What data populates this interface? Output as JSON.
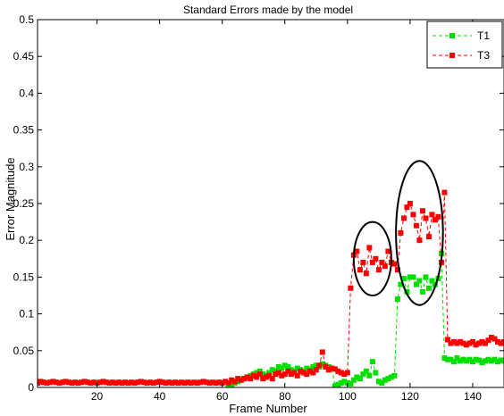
{
  "chart_data": {
    "type": "line",
    "title": "Standard Errors made by the model",
    "xlabel": "Frame Number",
    "ylabel": "Error Magnitude",
    "xlim": [
      1,
      150
    ],
    "ylim": [
      0,
      0.5
    ],
    "xticks": [
      20,
      40,
      60,
      80,
      100,
      120,
      140
    ],
    "yticks": [
      0,
      0.05,
      0.1,
      0.15,
      0.2,
      0.25,
      0.3,
      0.35,
      0.4,
      0.45,
      0.5
    ],
    "ytick_labels": [
      "0",
      "0.05",
      "0.1",
      "0.15",
      "0.2",
      "0.25",
      "0.3",
      "0.35",
      "0.4",
      "0.45",
      "0.5"
    ],
    "legend_position": "top-right",
    "grid": false,
    "series": [
      {
        "name": "T1",
        "color": "#00e000",
        "marker": "square",
        "line_style": "dashed",
        "x": [
          62,
          63,
          64,
          65,
          66,
          67,
          68,
          69,
          70,
          71,
          72,
          73,
          74,
          75,
          76,
          77,
          78,
          79,
          80,
          81,
          82,
          83,
          84,
          85,
          86,
          87,
          88,
          89,
          90,
          91,
          92,
          93,
          94,
          95,
          96,
          97,
          98,
          99,
          100,
          101,
          102,
          103,
          104,
          105,
          106,
          107,
          108,
          109,
          110,
          111,
          112,
          113,
          114,
          115,
          116,
          117,
          118,
          119,
          120,
          121,
          122,
          123,
          124,
          125,
          126,
          127,
          128,
          129,
          130,
          131,
          132,
          133,
          134,
          135,
          136,
          137,
          138,
          139,
          140,
          141,
          142,
          143,
          144,
          145,
          146,
          147,
          148,
          149,
          150
        ],
        "y": [
          0.0,
          0.004,
          0.006,
          0.008,
          0.01,
          0.012,
          0.014,
          0.016,
          0.018,
          0.02,
          0.022,
          0.018,
          0.016,
          0.02,
          0.024,
          0.022,
          0.028,
          0.026,
          0.03,
          0.028,
          0.024,
          0.022,
          0.026,
          0.024,
          0.022,
          0.026,
          0.024,
          0.028,
          0.03,
          0.028,
          0.032,
          0.03,
          0.028,
          0.026,
          0.002,
          0.004,
          0.006,
          0.008,
          0.006,
          0.005,
          0.01,
          0.014,
          0.012,
          0.018,
          0.022,
          0.016,
          0.035,
          0.02,
          0.008,
          0.006,
          0.01,
          0.012,
          0.014,
          0.016,
          0.12,
          0.14,
          0.148,
          0.13,
          0.15,
          0.15,
          0.14,
          0.145,
          0.13,
          0.15,
          0.135,
          0.145,
          0.14,
          0.148,
          0.182,
          0.04,
          0.038,
          0.038,
          0.035,
          0.04,
          0.036,
          0.038,
          0.036,
          0.038,
          0.035,
          0.038,
          0.037,
          0.034,
          0.036,
          0.038,
          0.036,
          0.038,
          0.035,
          0.037,
          0.036
        ]
      },
      {
        "name": "T3",
        "color": "#ff0000",
        "marker": "square",
        "line_style": "dashed",
        "x": [
          1,
          2,
          3,
          4,
          5,
          6,
          7,
          8,
          9,
          10,
          11,
          12,
          13,
          14,
          15,
          16,
          17,
          18,
          19,
          20,
          21,
          22,
          23,
          24,
          25,
          26,
          27,
          28,
          29,
          30,
          31,
          32,
          33,
          34,
          35,
          36,
          37,
          38,
          39,
          40,
          41,
          42,
          43,
          44,
          45,
          46,
          47,
          48,
          49,
          50,
          51,
          52,
          53,
          54,
          55,
          56,
          57,
          58,
          59,
          60,
          61,
          62,
          63,
          64,
          65,
          66,
          67,
          68,
          69,
          70,
          71,
          72,
          73,
          74,
          75,
          76,
          77,
          78,
          79,
          80,
          81,
          82,
          83,
          84,
          85,
          86,
          87,
          88,
          89,
          90,
          91,
          92,
          93,
          94,
          95,
          96,
          97,
          98,
          99,
          100,
          101,
          102,
          103,
          104,
          105,
          106,
          107,
          108,
          109,
          110,
          111,
          112,
          113,
          114,
          115,
          116,
          117,
          118,
          119,
          120,
          121,
          122,
          123,
          124,
          125,
          126,
          127,
          128,
          129,
          130,
          131,
          132,
          133,
          134,
          135,
          136,
          137,
          138,
          139,
          140,
          141,
          142,
          143,
          144,
          145,
          146,
          147,
          148,
          149,
          150
        ],
        "y": [
          0.006,
          0.008,
          0.007,
          0.006,
          0.007,
          0.008,
          0.007,
          0.006,
          0.007,
          0.008,
          0.007,
          0.006,
          0.007,
          0.006,
          0.007,
          0.008,
          0.007,
          0.006,
          0.007,
          0.006,
          0.007,
          0.008,
          0.007,
          0.006,
          0.007,
          0.006,
          0.007,
          0.006,
          0.007,
          0.006,
          0.007,
          0.006,
          0.007,
          0.008,
          0.007,
          0.006,
          0.007,
          0.006,
          0.007,
          0.008,
          0.007,
          0.006,
          0.007,
          0.006,
          0.007,
          0.006,
          0.007,
          0.006,
          0.007,
          0.006,
          0.007,
          0.006,
          0.007,
          0.008,
          0.007,
          0.006,
          0.007,
          0.006,
          0.007,
          0.006,
          0.008,
          0.006,
          0.01,
          0.008,
          0.012,
          0.01,
          0.012,
          0.014,
          0.012,
          0.016,
          0.014,
          0.018,
          0.012,
          0.014,
          0.016,
          0.012,
          0.018,
          0.02,
          0.016,
          0.018,
          0.022,
          0.018,
          0.02,
          0.016,
          0.022,
          0.02,
          0.018,
          0.022,
          0.02,
          0.024,
          0.03,
          0.048,
          0.028,
          0.024,
          0.026,
          0.025,
          0.022,
          0.02,
          0.018,
          0.02,
          0.135,
          0.18,
          0.185,
          0.16,
          0.17,
          0.155,
          0.19,
          0.17,
          0.175,
          0.16,
          0.17,
          0.165,
          0.185,
          0.17,
          0.168,
          0.16,
          0.21,
          0.23,
          0.245,
          0.25,
          0.235,
          0.22,
          0.2,
          0.24,
          0.23,
          0.205,
          0.235,
          0.228,
          0.232,
          0.17,
          0.265,
          0.065,
          0.06,
          0.062,
          0.06,
          0.062,
          0.06,
          0.058,
          0.06,
          0.062,
          0.058,
          0.06,
          0.062,
          0.06,
          0.064,
          0.068,
          0.066,
          0.062,
          0.06,
          0.062
        ]
      }
    ],
    "annotations": [
      {
        "shape": "ellipse",
        "cx": 108,
        "cy": 0.175,
        "rx": 6,
        "ry": 0.05
      },
      {
        "shape": "ellipse",
        "cx": 123,
        "cy": 0.21,
        "rx": 7.5,
        "ry": 0.098
      }
    ]
  }
}
